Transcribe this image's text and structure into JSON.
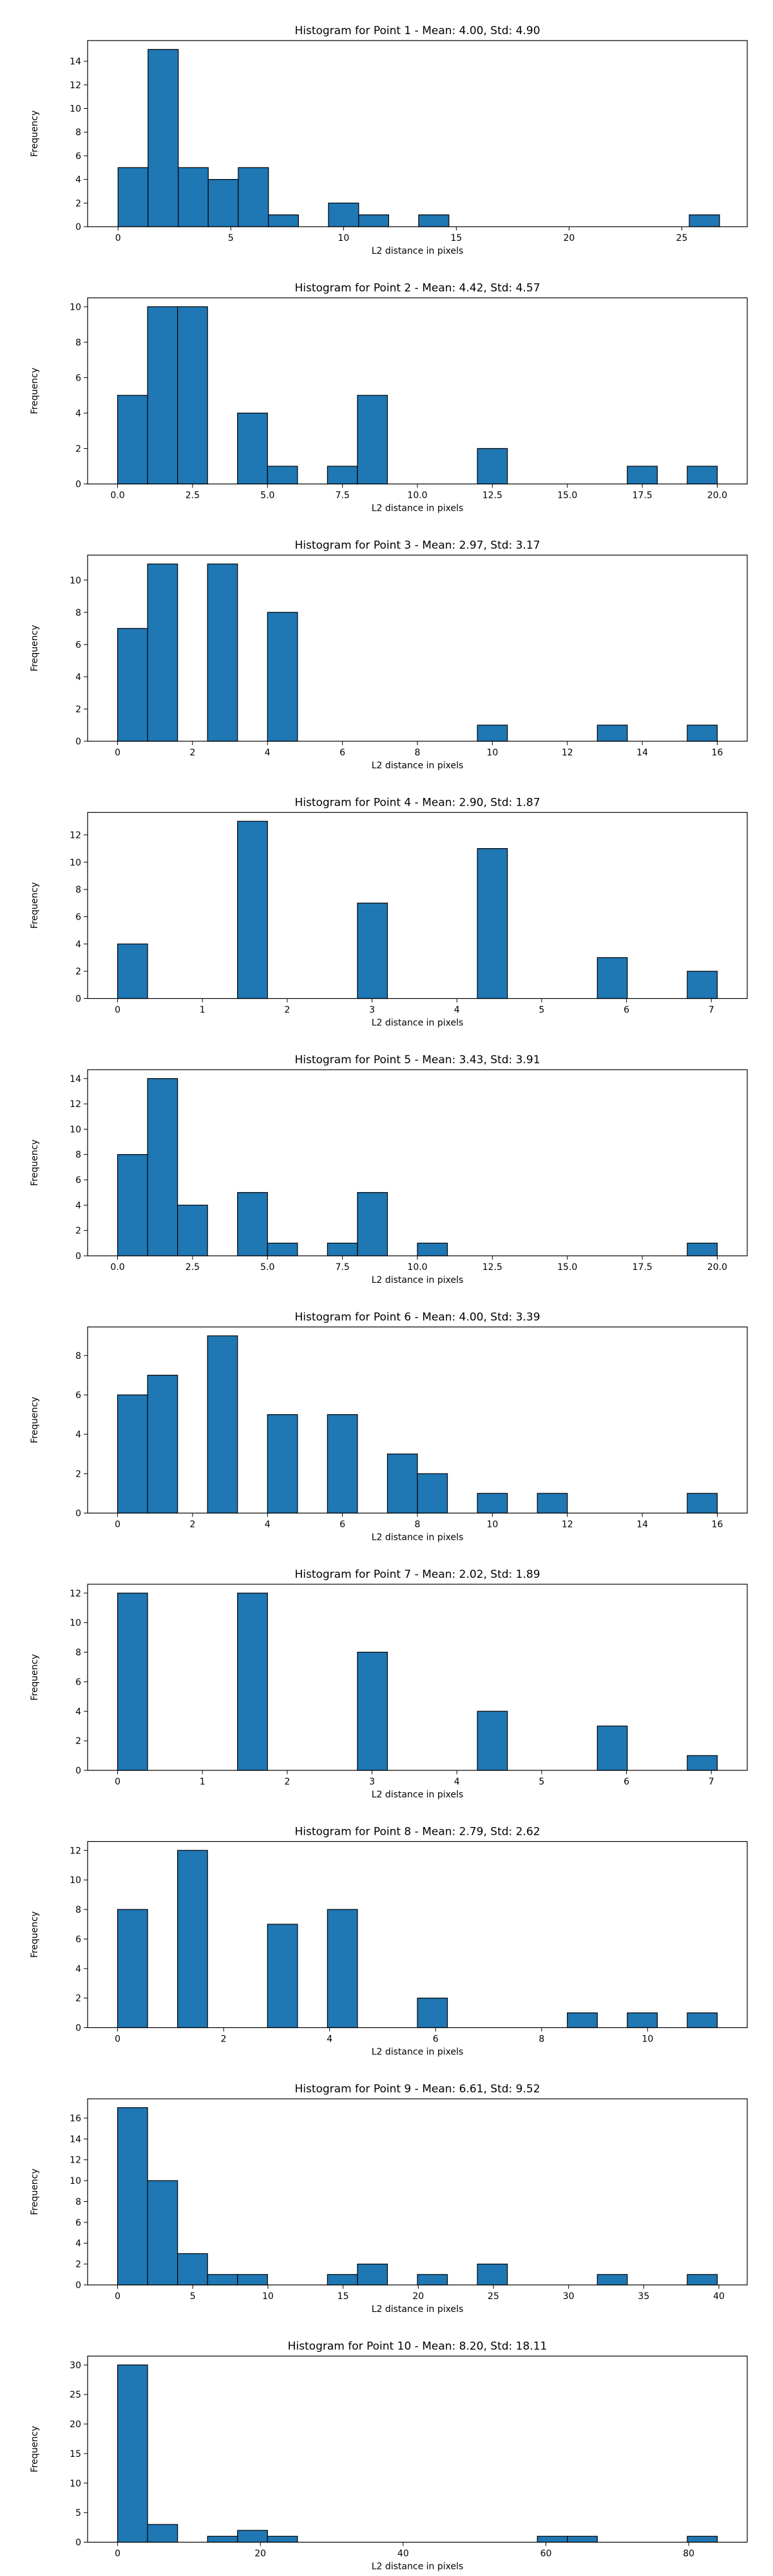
{
  "chart_data": [
    {
      "type": "bar",
      "title": "Histogram for Point 1 - Mean: 4.00, Std: 4.90",
      "xlabel": "L2 distance in pixels",
      "ylabel": "Frequency",
      "xlim": [
        -1.35,
        27.9
      ],
      "ylim": [
        0,
        15.75
      ],
      "xticks": [
        0,
        5,
        10,
        15,
        20,
        25
      ],
      "xtick_labels": [
        "0",
        "5",
        "10",
        "15",
        "20",
        "25"
      ],
      "yticks": [
        0,
        2,
        4,
        6,
        8,
        10,
        12,
        14
      ],
      "bins": [
        [
          0.0,
          1.33
        ],
        [
          1.33,
          2.67
        ],
        [
          2.67,
          4.0
        ],
        [
          4.0,
          5.33
        ],
        [
          5.33,
          6.67
        ],
        [
          6.67,
          8.0
        ],
        [
          9.33,
          10.67
        ],
        [
          10.67,
          12.0
        ],
        [
          13.33,
          14.67
        ],
        [
          25.33,
          26.67
        ]
      ],
      "values": [
        5,
        15,
        5,
        4,
        5,
        1,
        2,
        1,
        1,
        1
      ],
      "bar_color": "#1f77b4",
      "edge_color": "#000000",
      "grid": false
    },
    {
      "type": "bar",
      "title": "Histogram for Point 2 - Mean: 4.42, Std: 4.57",
      "xlabel": "L2 distance in pixels",
      "ylabel": "Frequency",
      "xlim": [
        -1.0,
        21.0
      ],
      "ylim": [
        0,
        10.5
      ],
      "xticks": [
        0,
        2.5,
        5,
        7.5,
        10,
        12.5,
        15,
        17.5,
        20
      ],
      "xtick_labels": [
        "0.0",
        "2.5",
        "5.0",
        "7.5",
        "10.0",
        "12.5",
        "15.0",
        "17.5",
        "20.0"
      ],
      "yticks": [
        0,
        2,
        4,
        6,
        8,
        10
      ],
      "bins": [
        [
          0.0,
          1.0
        ],
        [
          1.0,
          2.0
        ],
        [
          2.0,
          3.0
        ],
        [
          4.0,
          5.0
        ],
        [
          5.0,
          6.0
        ],
        [
          7.0,
          8.0
        ],
        [
          8.0,
          9.0
        ],
        [
          12.0,
          13.0
        ],
        [
          17.0,
          18.0
        ],
        [
          19.0,
          20.0
        ]
      ],
      "values": [
        5,
        10,
        10,
        4,
        1,
        1,
        5,
        2,
        1,
        1
      ],
      "bar_color": "#1f77b4",
      "edge_color": "#000000",
      "grid": false
    },
    {
      "type": "bar",
      "title": "Histogram for Point 3 - Mean: 2.97, Std: 3.17",
      "xlabel": "L2 distance in pixels",
      "ylabel": "Frequency",
      "xlim": [
        -0.8,
        16.8
      ],
      "ylim": [
        0,
        11.55
      ],
      "xticks": [
        0,
        2,
        4,
        6,
        8,
        10,
        12,
        14,
        16
      ],
      "xtick_labels": [
        "0",
        "2",
        "4",
        "6",
        "8",
        "10",
        "12",
        "14",
        "16"
      ],
      "yticks": [
        0,
        2,
        4,
        6,
        8,
        10
      ],
      "bins": [
        [
          0.0,
          0.8
        ],
        [
          0.8,
          1.6
        ],
        [
          2.4,
          3.2
        ],
        [
          4.0,
          4.8
        ],
        [
          9.6,
          10.4
        ],
        [
          12.8,
          13.6
        ],
        [
          15.2,
          16.0
        ]
      ],
      "values": [
        7,
        11,
        11,
        8,
        1,
        1,
        1
      ],
      "bar_color": "#1f77b4",
      "edge_color": "#000000",
      "grid": false
    },
    {
      "type": "bar",
      "title": "Histogram for Point 4 - Mean: 2.90, Std: 1.87",
      "xlabel": "L2 distance in pixels",
      "ylabel": "Frequency",
      "xlim": [
        -0.3535,
        7.4235
      ],
      "ylim": [
        0,
        13.65
      ],
      "xticks": [
        0,
        1,
        2,
        3,
        4,
        5,
        6,
        7
      ],
      "xtick_labels": [
        "0",
        "1",
        "2",
        "3",
        "4",
        "5",
        "6",
        "7"
      ],
      "yticks": [
        0,
        2,
        4,
        6,
        8,
        10,
        12
      ],
      "bins": [
        [
          0.0,
          0.3535
        ],
        [
          1.414,
          1.7675
        ],
        [
          2.828,
          3.1815
        ],
        [
          4.242,
          4.5955
        ],
        [
          5.656,
          6.0095
        ],
        [
          6.7165,
          7.07
        ]
      ],
      "values": [
        4,
        13,
        7,
        11,
        3,
        2
      ],
      "bar_color": "#1f77b4",
      "edge_color": "#000000",
      "grid": false
    },
    {
      "type": "bar",
      "title": "Histogram for Point 5 - Mean: 3.43, Std: 3.91",
      "xlabel": "L2 distance in pixels",
      "ylabel": "Frequency",
      "xlim": [
        -1.0,
        21.0
      ],
      "ylim": [
        0,
        14.7
      ],
      "xticks": [
        0,
        2.5,
        5,
        7.5,
        10,
        12.5,
        15,
        17.5,
        20
      ],
      "xtick_labels": [
        "0.0",
        "2.5",
        "5.0",
        "7.5",
        "10.0",
        "12.5",
        "15.0",
        "17.5",
        "20.0"
      ],
      "yticks": [
        0,
        2,
        4,
        6,
        8,
        10,
        12,
        14
      ],
      "bins": [
        [
          0.0,
          1.0
        ],
        [
          1.0,
          2.0
        ],
        [
          2.0,
          3.0
        ],
        [
          4.0,
          5.0
        ],
        [
          5.0,
          6.0
        ],
        [
          7.0,
          8.0
        ],
        [
          8.0,
          9.0
        ],
        [
          10.0,
          11.0
        ],
        [
          19.0,
          20.0
        ]
      ],
      "values": [
        8,
        14,
        4,
        5,
        1,
        1,
        5,
        1,
        1
      ],
      "bar_color": "#1f77b4",
      "edge_color": "#000000",
      "grid": false
    },
    {
      "type": "bar",
      "title": "Histogram for Point 6 - Mean: 4.00, Std: 3.39",
      "xlabel": "L2 distance in pixels",
      "ylabel": "Frequency",
      "xlim": [
        -0.8,
        16.8
      ],
      "ylim": [
        0,
        9.45
      ],
      "xticks": [
        0,
        2,
        4,
        6,
        8,
        10,
        12,
        14,
        16
      ],
      "xtick_labels": [
        "0",
        "2",
        "4",
        "6",
        "8",
        "10",
        "12",
        "14",
        "16"
      ],
      "yticks": [
        0,
        2,
        4,
        6,
        8
      ],
      "bins": [
        [
          0.0,
          0.8
        ],
        [
          0.8,
          1.6
        ],
        [
          2.4,
          3.2
        ],
        [
          4.0,
          4.8
        ],
        [
          5.6,
          6.4
        ],
        [
          7.2,
          8.0
        ],
        [
          8.0,
          8.8
        ],
        [
          9.6,
          10.4
        ],
        [
          11.2,
          12.0
        ],
        [
          15.2,
          16.0
        ]
      ],
      "values": [
        6,
        7,
        9,
        5,
        5,
        3,
        2,
        1,
        1,
        1
      ],
      "bar_color": "#1f77b4",
      "edge_color": "#000000",
      "grid": false
    },
    {
      "type": "bar",
      "title": "Histogram for Point 7 - Mean: 2.02, Std: 1.89",
      "xlabel": "L2 distance in pixels",
      "ylabel": "Frequency",
      "xlim": [
        -0.3535,
        7.4235
      ],
      "ylim": [
        0,
        12.6
      ],
      "xticks": [
        0,
        1,
        2,
        3,
        4,
        5,
        6,
        7
      ],
      "xtick_labels": [
        "0",
        "1",
        "2",
        "3",
        "4",
        "5",
        "6",
        "7"
      ],
      "yticks": [
        0,
        2,
        4,
        6,
        8,
        10,
        12
      ],
      "bins": [
        [
          0.0,
          0.3535
        ],
        [
          1.414,
          1.7675
        ],
        [
          2.828,
          3.1815
        ],
        [
          4.242,
          4.5955
        ],
        [
          5.656,
          6.0095
        ],
        [
          6.7165,
          7.07
        ]
      ],
      "values": [
        12,
        12,
        8,
        4,
        3,
        1
      ],
      "bar_color": "#1f77b4",
      "edge_color": "#000000",
      "grid": false
    },
    {
      "type": "bar",
      "title": "Histogram for Point 8 - Mean: 2.79, Std: 2.62",
      "xlabel": "L2 distance in pixels",
      "ylabel": "Frequency",
      "xlim": [
        -0.5657,
        11.8797
      ],
      "ylim": [
        0,
        12.6
      ],
      "xticks": [
        0,
        2,
        4,
        6,
        8,
        10
      ],
      "xtick_labels": [
        "0",
        "2",
        "4",
        "6",
        "8",
        "10"
      ],
      "yticks": [
        0,
        2,
        4,
        6,
        8,
        10,
        12
      ],
      "bins": [
        [
          0.0,
          0.5657
        ],
        [
          1.1314,
          1.6971
        ],
        [
          2.8285,
          3.3942
        ],
        [
          3.9599,
          4.5256
        ],
        [
          5.657,
          6.2227
        ],
        [
          8.4855,
          9.0512
        ],
        [
          9.6169,
          10.1826
        ],
        [
          10.7483,
          11.314
        ]
      ],
      "values": [
        8,
        12,
        7,
        8,
        2,
        1,
        1,
        1
      ],
      "bar_color": "#1f77b4",
      "edge_color": "#000000",
      "grid": false
    },
    {
      "type": "bar",
      "title": "Histogram for Point 9 - Mean: 6.61, Std: 9.52",
      "xlabel": "L2 distance in pixels",
      "ylabel": "Frequency",
      "xlim": [
        -1.9945,
        41.8845
      ],
      "ylim": [
        0,
        17.85
      ],
      "xticks": [
        0,
        5,
        10,
        15,
        20,
        25,
        30,
        35,
        40
      ],
      "xtick_labels": [
        "0",
        "5",
        "10",
        "15",
        "20",
        "25",
        "30",
        "35",
        "40"
      ],
      "yticks": [
        0,
        2,
        4,
        6,
        8,
        10,
        12,
        14,
        16
      ],
      "bins": [
        [
          0.0,
          1.9945
        ],
        [
          1.9945,
          3.989
        ],
        [
          3.989,
          5.9835
        ],
        [
          5.9835,
          7.978
        ],
        [
          7.978,
          9.9725
        ],
        [
          13.9615,
          15.956
        ],
        [
          15.956,
          17.9505
        ],
        [
          19.945,
          21.9395
        ],
        [
          23.934,
          25.9285
        ],
        [
          31.912,
          33.9065
        ],
        [
          37.8955,
          39.89
        ]
      ],
      "values": [
        17,
        10,
        3,
        1,
        1,
        1,
        2,
        1,
        2,
        1,
        1
      ],
      "bar_color": "#1f77b4",
      "edge_color": "#000000",
      "grid": false
    },
    {
      "type": "bar",
      "title": "Histogram for Point 10 - Mean: 8.20, Std: 18.11",
      "xlabel": "L2 distance in pixels",
      "ylabel": "Frequency",
      "xlim": [
        -4.2,
        88.2
      ],
      "ylim": [
        0,
        31.5
      ],
      "xticks": [
        0,
        20,
        40,
        60,
        80
      ],
      "xtick_labels": [
        "0",
        "20",
        "40",
        "60",
        "80"
      ],
      "yticks": [
        0,
        5,
        10,
        15,
        20,
        25,
        30
      ],
      "bins": [
        [
          0.0,
          4.2
        ],
        [
          4.2,
          8.4
        ],
        [
          12.6,
          16.8
        ],
        [
          16.8,
          21.0
        ],
        [
          21.0,
          25.2
        ],
        [
          58.8,
          63.0
        ],
        [
          63.0,
          67.2
        ],
        [
          79.8,
          84.0
        ]
      ],
      "values": [
        30,
        3,
        1,
        2,
        1,
        1,
        1,
        1
      ],
      "bar_color": "#1f77b4",
      "edge_color": "#000000",
      "grid": false
    }
  ]
}
